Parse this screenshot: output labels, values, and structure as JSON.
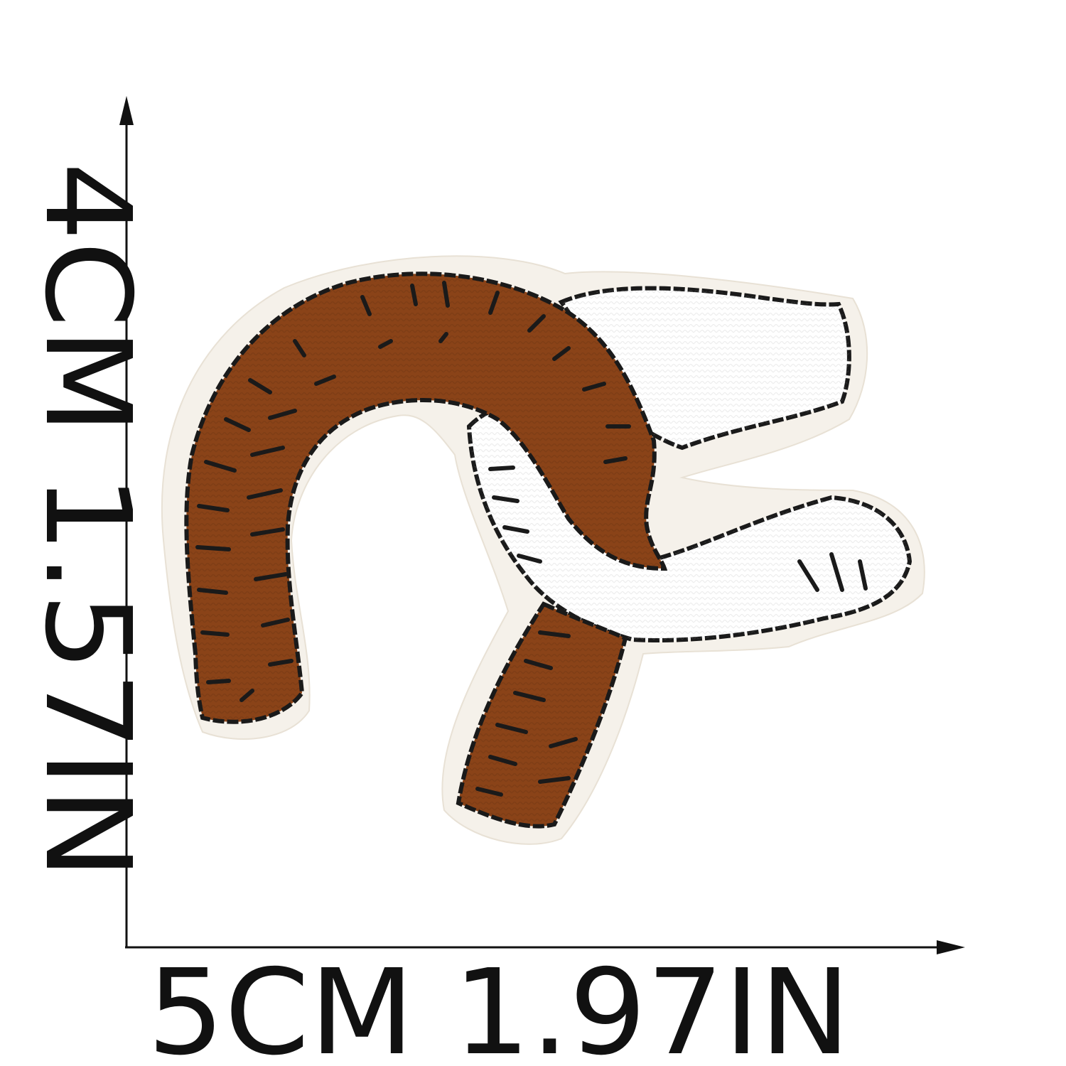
{
  "dimensions": {
    "height_label": "4CM 1.57IN",
    "width_label": "5CM 1.97IN"
  },
  "colors": {
    "background": "#ffffff",
    "ink": "#111111",
    "brown_thread": "#8a4318",
    "white_thread": "#ffffff",
    "stitch_outline": "#1a1a1a",
    "patch_border": "#f5f1ea"
  },
  "patch": {
    "icon": "horseshoe-patch-icon"
  }
}
